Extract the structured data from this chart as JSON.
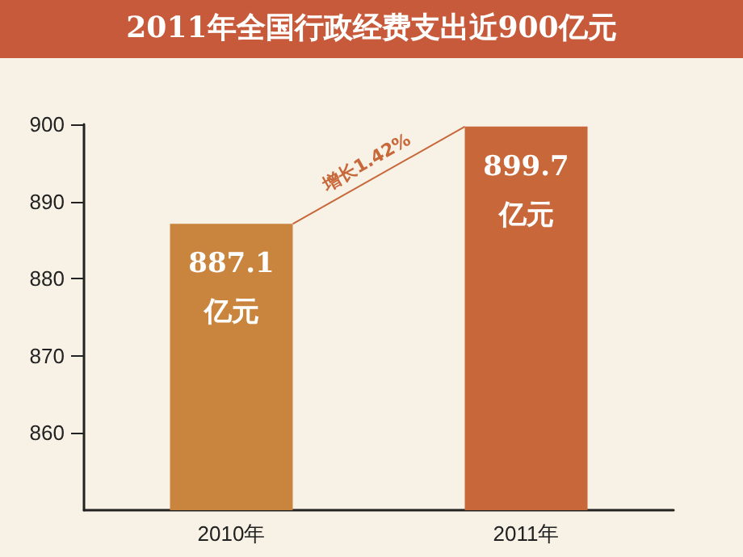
{
  "chart_data": {
    "type": "bar",
    "title": "2011年全国行政经费支出近900亿元",
    "categories": [
      "2010年",
      "2011年"
    ],
    "values": [
      887.1,
      899.7
    ],
    "colors": [
      "#c9843e",
      "#c8683a"
    ],
    "value_labels": [
      "887.1\n亿元",
      "899.7\n亿元"
    ],
    "annotations": [
      "增长1.42%"
    ],
    "ylim": [
      850,
      900
    ],
    "yticks": [
      860,
      870,
      880,
      890,
      900
    ],
    "grid": false
  }
}
